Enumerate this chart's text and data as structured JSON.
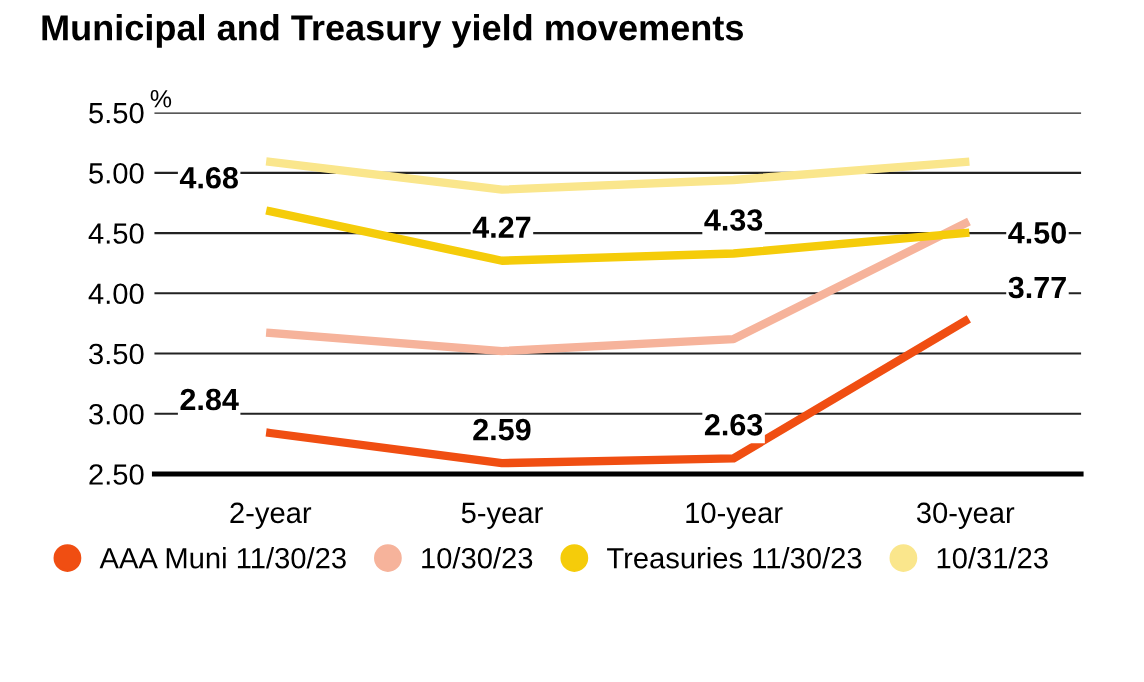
{
  "chart_data": {
    "type": "line",
    "title": "Municipal and Treasury yield movements",
    "ylabel": "%",
    "categories": [
      "2-year",
      "5-year",
      "10-year",
      "30-year"
    ],
    "series": [
      {
        "name": "AAA Muni 11/30/23",
        "color": "#f04e12",
        "values": [
          2.84,
          2.59,
          2.63,
          3.77
        ],
        "value_labels": [
          "2.84",
          "2.59",
          "2.63",
          "3.77"
        ]
      },
      {
        "name": "10/30/23",
        "color": "#f6b39b",
        "values": [
          3.67,
          3.52,
          3.62,
          4.58
        ]
      },
      {
        "name": "Treasuries 11/30/23",
        "color": "#f5cc0a",
        "values": [
          4.68,
          4.27,
          4.33,
          4.5
        ],
        "value_labels": [
          "4.68",
          "4.27",
          "4.33",
          "4.50"
        ]
      },
      {
        "name": "10/31/23",
        "color": "#fae68c",
        "values": [
          5.09,
          4.86,
          4.94,
          5.09
        ]
      }
    ],
    "ylim": [
      2.5,
      5.5
    ],
    "yticks": [
      {
        "value": 2.5,
        "label": "2.50"
      },
      {
        "value": 3.0,
        "label": "3.00"
      },
      {
        "value": 3.5,
        "label": "3.50"
      },
      {
        "value": 4.0,
        "label": "4.00"
      },
      {
        "value": 4.5,
        "label": "4.50"
      },
      {
        "value": 5.0,
        "label": "5.00"
      },
      {
        "value": 5.5,
        "label": "5.50"
      }
    ],
    "grid": "y",
    "legend": "bottom",
    "marker": "none",
    "line_style": "solid"
  }
}
